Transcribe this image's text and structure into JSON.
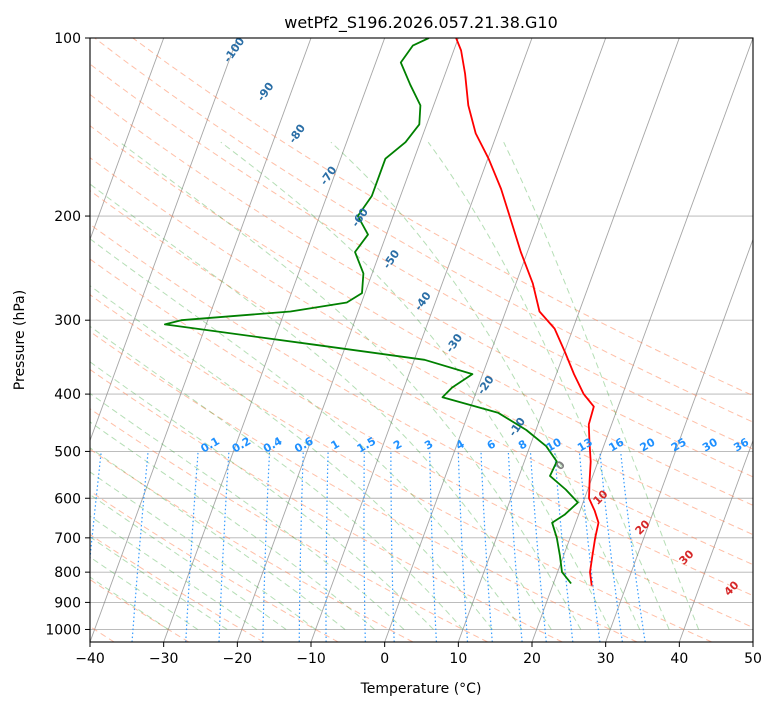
{
  "chart_data": {
    "type": "line",
    "subtype": "skew-T log-P diagram",
    "title": "wetPf2_S196.2026.057.21.38.G10",
    "xlabel": "Temperature (°C)",
    "ylabel": "Pressure (hPa)",
    "xlim": [
      -40,
      50
    ],
    "ylim": [
      1050,
      100
    ],
    "x_ticks": [
      -40,
      -30,
      -20,
      -10,
      0,
      10,
      20,
      30,
      40,
      50
    ],
    "y_ticks": [
      100,
      200,
      300,
      400,
      500,
      600,
      700,
      800,
      900,
      1000
    ],
    "grid": true,
    "series": [
      {
        "name": "temperature",
        "color": "#ff0000",
        "points": [
          [
            843,
            25.3
          ],
          [
            800,
            24.4
          ],
          [
            750,
            23.9
          ],
          [
            700,
            23.4
          ],
          [
            660,
            23.1
          ],
          [
            630,
            22.0
          ],
          [
            600,
            20.6
          ],
          [
            560,
            19.8
          ],
          [
            520,
            19.0
          ],
          [
            480,
            17.8
          ],
          [
            450,
            16.9
          ],
          [
            420,
            16.7
          ],
          [
            400,
            14.7
          ],
          [
            370,
            12.4
          ],
          [
            340,
            10.1
          ],
          [
            310,
            7.5
          ],
          [
            290,
            4.6
          ],
          [
            260,
            2.3
          ],
          [
            230,
            -0.9
          ],
          [
            200,
            -4.2
          ],
          [
            180,
            -6.7
          ],
          [
            160,
            -9.9
          ],
          [
            145,
            -12.9
          ],
          [
            130,
            -15.3
          ],
          [
            115,
            -17.3
          ],
          [
            105,
            -19.0
          ],
          [
            100,
            -20.3
          ]
        ]
      },
      {
        "name": "dewpoint",
        "color": "#008000",
        "points": [
          [
            836,
            22.4
          ],
          [
            800,
            20.6
          ],
          [
            750,
            19.5
          ],
          [
            700,
            18.2
          ],
          [
            660,
            16.8
          ],
          [
            640,
            18.1
          ],
          [
            610,
            19.3
          ],
          [
            580,
            17.0
          ],
          [
            550,
            14.2
          ],
          [
            520,
            14.4
          ],
          [
            490,
            12.2
          ],
          [
            460,
            8.7
          ],
          [
            430,
            4.0
          ],
          [
            405,
            -4.3
          ],
          [
            390,
            -3.5
          ],
          [
            370,
            -1.4
          ],
          [
            350,
            -8.6
          ],
          [
            330,
            -24.3
          ],
          [
            305,
            -45.6
          ],
          [
            300,
            -43.6
          ],
          [
            290,
            -29.2
          ],
          [
            280,
            -22.0
          ],
          [
            270,
            -20.4
          ],
          [
            250,
            -21.2
          ],
          [
            230,
            -23.4
          ],
          [
            215,
            -22.5
          ],
          [
            200,
            -24.8
          ],
          [
            185,
            -23.9
          ],
          [
            170,
            -23.9
          ],
          [
            160,
            -23.9
          ],
          [
            150,
            -22.0
          ],
          [
            140,
            -21.0
          ],
          [
            130,
            -21.8
          ],
          [
            120,
            -24.2
          ],
          [
            110,
            -26.6
          ],
          [
            103,
            -25.8
          ],
          [
            100,
            -24.0
          ]
        ]
      }
    ],
    "dry_adiabat_labels": [
      "-100",
      "-90",
      "-80",
      "-70",
      "-60",
      "-50",
      "-40",
      "-30",
      "-20",
      "-10"
    ],
    "moist_adiabat_labels": [
      "0",
      "10",
      "20",
      "30",
      "40"
    ],
    "mixing_ratio_labels": [
      "0.1",
      "0.2",
      "0.4",
      "0.6",
      "1",
      "1.5",
      "2",
      "3",
      "4",
      "6",
      "8",
      "10",
      "13",
      "16",
      "20",
      "25",
      "30",
      "36"
    ],
    "mixing_ratio_values": [
      0.1,
      0.2,
      0.4,
      0.6,
      1,
      1.5,
      2,
      3,
      4,
      6,
      8,
      10,
      13,
      16,
      20,
      25,
      30,
      36
    ],
    "moist_adiabat_values": [
      0,
      10,
      20,
      30,
      40
    ],
    "colors": {
      "dry_adiabat": "#ff7f50",
      "moist_adiabat": "#2ca02c",
      "mixing_ratio": "#1e90ff",
      "isotherm": "#808080",
      "isobar": "#808080"
    }
  }
}
